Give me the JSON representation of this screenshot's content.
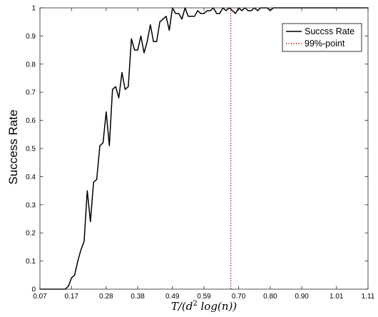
{
  "chart_data": {
    "type": "line",
    "title": "",
    "xlabel": "T/(d² log(n))",
    "xlabel_parts": {
      "pre": "T/(d",
      "sup": "2",
      "post": " log(n))"
    },
    "ylabel": "Success Rate",
    "xlim": [
      0.07,
      1.11
    ],
    "ylim": [
      0,
      1
    ],
    "grid": false,
    "legend_position": "top-right",
    "x_ticks": [
      0.07,
      0.17,
      0.28,
      0.38,
      0.49,
      0.59,
      0.7,
      0.8,
      0.9,
      1.01,
      1.11
    ],
    "x_tick_labels": [
      "0.07",
      "0.17",
      "0.28",
      "0.38",
      "0.49",
      "0.59",
      "0.70",
      "0.80",
      "0.90",
      "1.01",
      "1.11"
    ],
    "y_ticks": [
      0,
      0.1,
      0.2,
      0.3,
      0.4,
      0.5,
      0.6,
      0.7,
      0.8,
      0.9,
      1
    ],
    "y_tick_labels": [
      "0",
      "0.1",
      "0.2",
      "0.3",
      "0.4",
      "0.5",
      "0.6",
      "0.7",
      "0.8",
      "0.9",
      "1"
    ],
    "series": [
      {
        "name": "Succss Rate",
        "color": "#000000",
        "style": "solid",
        "x": [
          0.07,
          0.08,
          0.09,
          0.1,
          0.11,
          0.12,
          0.13,
          0.14,
          0.15,
          0.16,
          0.17,
          0.18,
          0.19,
          0.2,
          0.21,
          0.22,
          0.23,
          0.24,
          0.25,
          0.26,
          0.27,
          0.28,
          0.29,
          0.3,
          0.31,
          0.32,
          0.33,
          0.34,
          0.35,
          0.36,
          0.37,
          0.38,
          0.39,
          0.4,
          0.41,
          0.42,
          0.43,
          0.44,
          0.45,
          0.46,
          0.47,
          0.48,
          0.49,
          0.5,
          0.51,
          0.52,
          0.53,
          0.54,
          0.55,
          0.56,
          0.57,
          0.58,
          0.59,
          0.6,
          0.61,
          0.62,
          0.63,
          0.64,
          0.65,
          0.66,
          0.67,
          0.68,
          0.69,
          0.7,
          0.71,
          0.72,
          0.73,
          0.74,
          0.75,
          0.76,
          0.77,
          0.78,
          0.79,
          0.8,
          0.81,
          0.82,
          0.83,
          0.84,
          0.85,
          0.9,
          0.95,
          1.0,
          1.05,
          1.11
        ],
        "y": [
          0,
          0,
          0,
          0,
          0,
          0,
          0,
          0,
          0,
          0.01,
          0.04,
          0.05,
          0.1,
          0.14,
          0.17,
          0.35,
          0.24,
          0.38,
          0.39,
          0.51,
          0.52,
          0.63,
          0.51,
          0.71,
          0.72,
          0.68,
          0.77,
          0.71,
          0.72,
          0.89,
          0.85,
          0.85,
          0.9,
          0.84,
          0.88,
          0.94,
          0.88,
          0.88,
          0.95,
          0.96,
          0.97,
          0.92,
          1.0,
          0.98,
          0.98,
          0.96,
          1.0,
          0.97,
          0.97,
          0.97,
          0.99,
          0.98,
          0.98,
          0.99,
          0.99,
          1.0,
          0.98,
          0.98,
          1.0,
          0.99,
          1.0,
          0.99,
          0.98,
          1.0,
          0.99,
          1.0,
          0.99,
          0.99,
          1.0,
          0.99,
          1.0,
          1.0,
          1.0,
          0.99,
          1.0,
          1.0,
          1.0,
          1.0,
          1.0,
          1.0,
          1.0,
          1.0,
          1.0,
          1.0
        ]
      }
    ],
    "reference_lines": [
      {
        "name": "99%-point",
        "x": 0.675,
        "color": "#e0161c",
        "style": "dotted"
      }
    ]
  }
}
